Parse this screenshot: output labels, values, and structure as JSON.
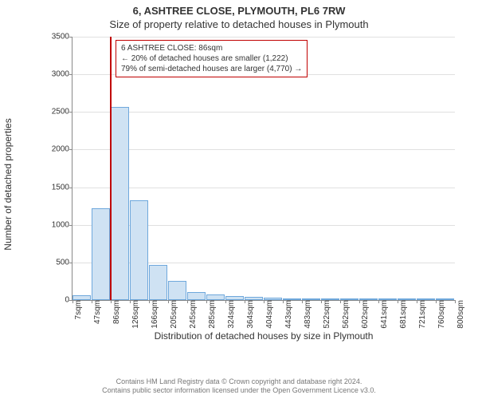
{
  "title_main": "6, ASHTREE CLOSE, PLYMOUTH, PL6 7RW",
  "title_sub": "Size of property relative to detached houses in Plymouth",
  "chart": {
    "type": "bar-histogram",
    "ylabel": "Number of detached properties",
    "xlabel": "Distribution of detached houses by size in Plymouth",
    "ylim_max": 3500,
    "ytick_step": 500,
    "yticks": [
      0,
      500,
      1000,
      1500,
      2000,
      2500,
      3000,
      3500
    ],
    "bar_fill": "#cfe2f3",
    "bar_border": "#6fa8dc",
    "grid_color": "#e0e0e0",
    "axis_color": "#888888",
    "marker_color": "#c00000",
    "xticks": [
      "7sqm",
      "47sqm",
      "86sqm",
      "126sqm",
      "166sqm",
      "205sqm",
      "245sqm",
      "285sqm",
      "324sqm",
      "364sqm",
      "404sqm",
      "443sqm",
      "483sqm",
      "522sqm",
      "562sqm",
      "602sqm",
      "641sqm",
      "681sqm",
      "721sqm",
      "760sqm",
      "800sqm"
    ],
    "bars": [
      {
        "x_index": 0,
        "value": 60
      },
      {
        "x_index": 1,
        "value": 1220
      },
      {
        "x_index": 2,
        "value": 2570
      },
      {
        "x_index": 3,
        "value": 1330
      },
      {
        "x_index": 4,
        "value": 470
      },
      {
        "x_index": 5,
        "value": 250
      },
      {
        "x_index": 6,
        "value": 110
      },
      {
        "x_index": 7,
        "value": 70
      },
      {
        "x_index": 8,
        "value": 50
      },
      {
        "x_index": 9,
        "value": 40
      },
      {
        "x_index": 10,
        "value": 30
      },
      {
        "x_index": 11,
        "value": 20
      },
      {
        "x_index": 12,
        "value": 15
      },
      {
        "x_index": 13,
        "value": 10
      },
      {
        "x_index": 14,
        "value": 8
      },
      {
        "x_index": 15,
        "value": 6
      },
      {
        "x_index": 16,
        "value": 5
      },
      {
        "x_index": 17,
        "value": 4
      },
      {
        "x_index": 18,
        "value": 3
      },
      {
        "x_index": 19,
        "value": 2
      }
    ],
    "marker_x_index": 2,
    "info_box": {
      "line1": "6 ASHTREE CLOSE: 86sqm",
      "line2": "← 20% of detached houses are smaller (1,222)",
      "line3": "79% of semi-detached houses are larger (4,770) →"
    }
  },
  "footer": {
    "line1": "Contains HM Land Registry data © Crown copyright and database right 2024.",
    "line2": "Contains public sector information licensed under the Open Government Licence v3.0."
  }
}
